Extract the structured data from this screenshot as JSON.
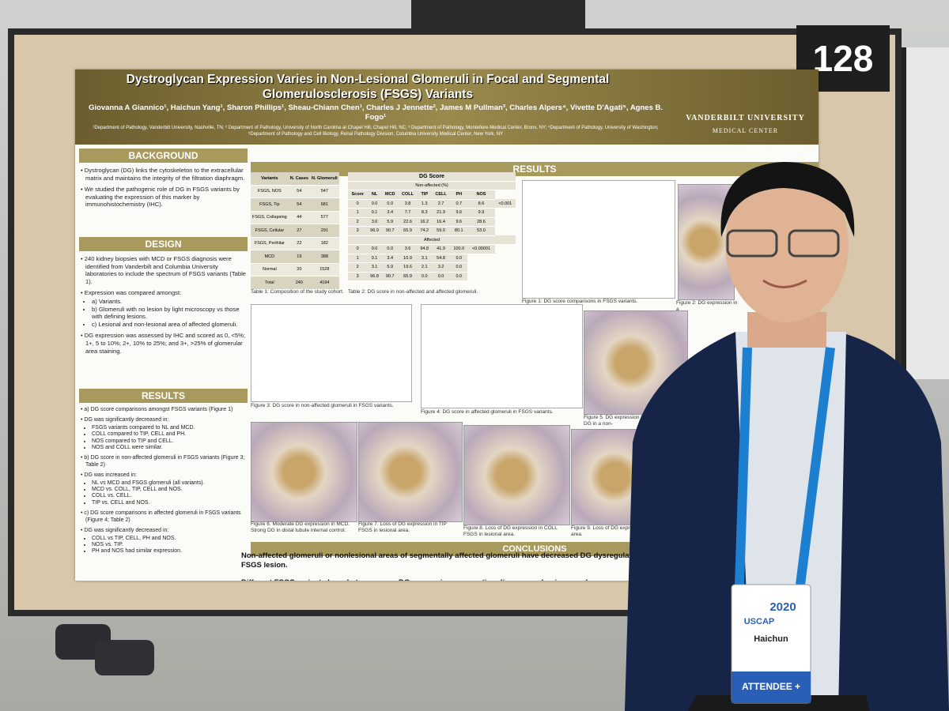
{
  "board_number": "128",
  "header": {
    "title": "Dystroglycan Expression Varies in Non-Lesional Glomeruli in Focal and Segmental Glomerulosclerosis (FSGS) Variants",
    "authors": "Giovanna A Giannico¹, Haichun Yang¹, Sharon Phillips¹, Sheau-Chiann Chen¹, Charles J Jennette², James M Pullman³, Charles Alpers⁴, Vivette D'Agati⁵, Agnes B. Fogo¹",
    "affiliations": "¹Department of Pathology, Vanderbilt University, Nashville, TN; ² Department of Pathology, University of North Carolina at Chapel Hill, Chapel Hill, NC; ³ Department of Pathology, Montefiore Medical Center, Bronx, NY; ⁴Department of Pathology, University of Washington; ⁵Department of Pathology and Cell Biology, Renal Pathology Division, Columbia University Medical Center, New York, NY",
    "logo": "VANDERBILT UNIVERSITY",
    "logo_sub": "MEDICAL CENTER"
  },
  "background": {
    "heading": "BACKGROUND",
    "items": [
      "Dystroglycan (DG) links the cytoskeleton to the extracellular matrix and maintains the integrity of the filtration diaphragm.",
      "We studied the pathogenic role of DG in FSGS variants by evaluating the expression of this marker by immunohistochemistry (IHC)."
    ]
  },
  "design": {
    "heading": "DESIGN",
    "items": [
      "240 kidney biopsies with MCD or FSGS diagnosis were identified from Vanderbilt and Columbia University laboratories to include the spectrum of FSGS variants (Table 1).",
      "Expression was compared amongst:",
      [
        "a) Variants.",
        "b) Glomeruli with no lesion by light microscopy vs those with defining lesions.",
        "c) Lesional and non-lesional area of affected glomeruli."
      ],
      "DG expression was assessed by IHC and scored as 0, <5%; 1+, 5 to 10%; 2+, 10% to 25%; and 3+, >25% of glomerular area staining."
    ]
  },
  "results_left": {
    "heading": "RESULTS",
    "items": [
      "a) DG score comparisons amongst FSGS variants (Figure 1)",
      "DG was significantly decreased in:",
      [
        "FSGS variants compared to NL and MCD.",
        "COLL compared to TIP, CELL and PH.",
        "NOS compared to TIP and CELL.",
        "NOS and COLL were similar."
      ],
      "b) DG score in non-affected glomeruli in FSGS variants (Figure 3; Table 2)",
      "DG was increased in:",
      [
        "NL vs MCD and FSGS glomeruli (all variants).",
        "MCD vs. COLL, TIP, CELL and NOS.",
        "COLL vs. CELL.",
        "TIP vs. CELL and NOS."
      ],
      "c) DG score comparisons in affected glomeruli in FSGS variants (Figure 4; Table 2)",
      "DG was significantly decreased in:",
      [
        "COLL vs TIP, CELL, PH and NOS.",
        "NOS vs. TIP.",
        "PH and NOS had similar expression."
      ]
    ]
  },
  "results": {
    "heading": "RESULTS",
    "table1": {
      "columns": [
        "Variants",
        "N. Cases",
        "N. Glomeruli"
      ],
      "rows": [
        [
          "FSGS, NOS",
          "54",
          "547"
        ],
        [
          "FSGS, Tip",
          "54",
          "681"
        ],
        [
          "FSGS, Collapsing",
          "44",
          "577"
        ],
        [
          "FSGS, Cellular",
          "27",
          "291"
        ],
        [
          "FSGS, Perihilar",
          "22",
          "182"
        ],
        [
          "MCD",
          "19",
          "388"
        ],
        [
          "Normal",
          "20",
          "1528"
        ],
        [
          "Total",
          "240",
          "4194"
        ]
      ],
      "caption": "Table 1: Composition of the study cohort."
    },
    "table2": {
      "title": "DG Score",
      "group1": "Non-affected (%)",
      "columns": [
        "Score",
        "NL",
        "MCD",
        "COLL",
        "TIP",
        "CELL",
        "PH",
        "NOS"
      ],
      "rows1": [
        [
          "0",
          "0.0",
          "0.0",
          "3.8",
          "1.3",
          "2.7",
          "0.7",
          "8.6",
          "<0.001"
        ],
        [
          "1",
          "0.1",
          "3.4",
          "7.7",
          "8.3",
          "21.9",
          "9.6",
          "9.9"
        ],
        [
          "2",
          "3.0",
          "5.9",
          "22.6",
          "16.2",
          "16.4",
          "9.6",
          "28.6"
        ],
        [
          "3",
          "96.9",
          "90.7",
          "65.9",
          "74.2",
          "59.0",
          "80.1",
          "53.0"
        ]
      ],
      "group2": "Affected",
      "rows2": [
        [
          "0",
          "0.0",
          "0.0",
          "3.6",
          "94.8",
          "41.9",
          "100.0",
          "<0.00001"
        ],
        [
          "1",
          "0.1",
          "3.4",
          "10.9",
          "3.1",
          "54.8",
          "0.0"
        ],
        [
          "2",
          "3.1",
          "5.9",
          "19.6",
          "2.1",
          "3.2",
          "0.0"
        ],
        [
          "3",
          "96.8",
          "90.7",
          "65.9",
          "0.0",
          "0.0",
          "0.0"
        ]
      ],
      "caption": "Table 2: DG score in non-affected and affected glomeruli."
    },
    "figures": [
      "Figure 1: DG score comparisons in FSGS variants.",
      "Figure 2: DG expression in a",
      "Figure 3: DG score in non-affected glomeruli in FSGS variants.",
      "Figure 4: DG score in affected glomeruli in FSGS variants.",
      "Figure 5. DG expression in B) Decreased DG in a non-",
      "Figure 6. Moderate DG expression in MCD. Strong DG in distal tubule internal control.",
      "Figure 7. Loss of DG expression in TIP FSGS in lesional area.",
      "Figure 8. Loss of DG expression in COLL FSGS in lesional area.",
      "Figure 9. Loss of DG expression in lesion area."
    ]
  },
  "conclusions": {
    "heading": "CONCLUSIONS",
    "items": [
      "Non-affected glomeruli or nonlesional areas of segmentally affected glomeruli have decreased DG dysregulation preceding the structural FSGS lesion.",
      "Different FSGS variants have heterogenous DG expression, suggesting diverse mechanisms unde"
    ]
  },
  "badge": {
    "year": "2020",
    "org": "USCAP",
    "name": "Haichun",
    "role": "ATTENDEE +"
  }
}
